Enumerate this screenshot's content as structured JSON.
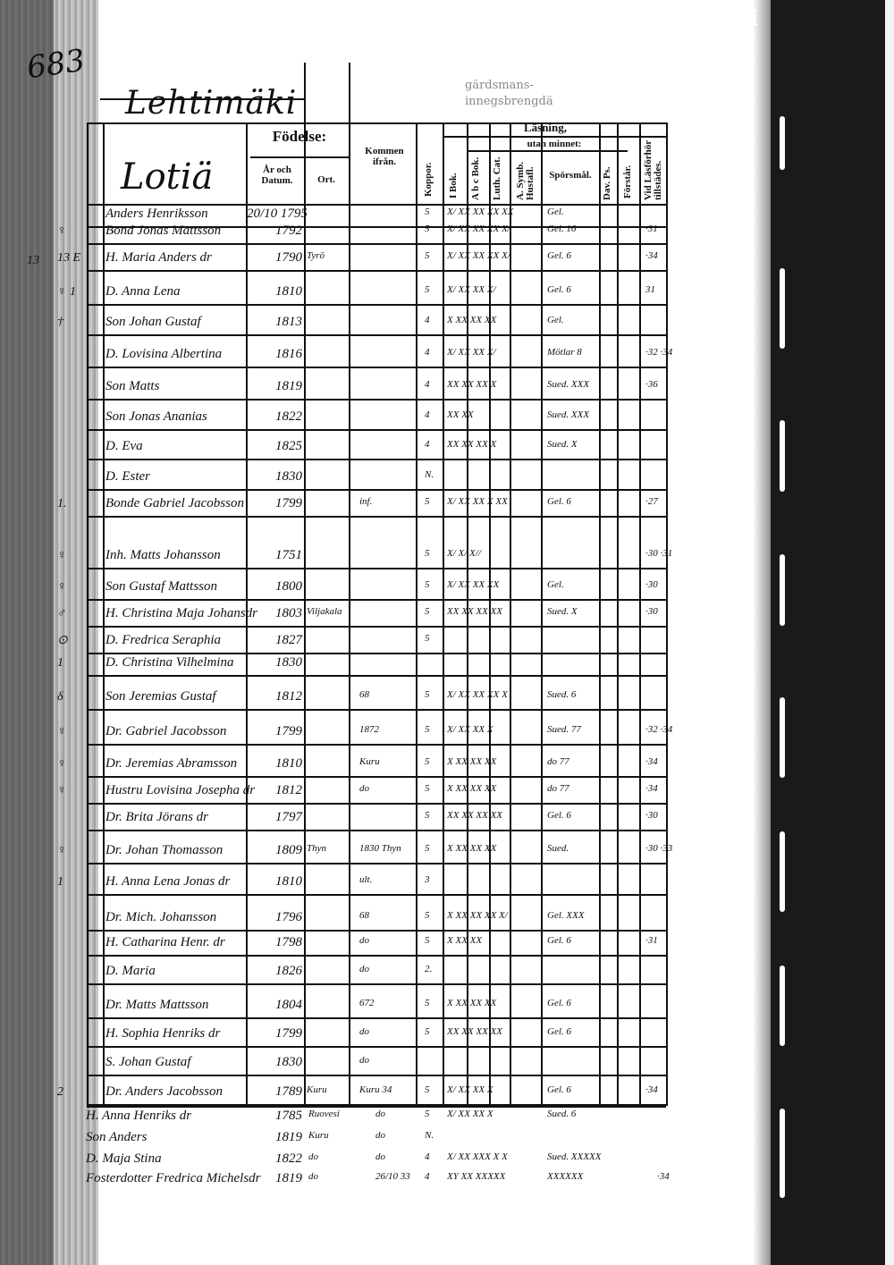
{
  "page": {
    "page_number": "683",
    "village": "Lehtimäki",
    "farm": "Lotiä",
    "faded_print": [
      "gärdsmans-",
      "innegsbrengdä"
    ],
    "margin_number": "13",
    "top_right_mark": "II",
    "bottom_right_mark": "II"
  },
  "headers": {
    "birth": "Födelse:",
    "year_date": "År och Datum.",
    "place": "Ort.",
    "moved_from": "Kommen ifrån.",
    "smallpox": "Koppor.",
    "reading": "Läsning,",
    "without_memory": "utan minnet:",
    "book": "I Bok.",
    "abc": "A b c Bok.",
    "catechism": "Luth. Cat.",
    "symbols": "A. Symb. Hustafl.",
    "questions": "Spörsmål.",
    "psalms": "Dav. Ps.",
    "understands": "Förstår.",
    "attended": "Vid Läsförhör tillstädes."
  },
  "rows": [
    {
      "mark": "",
      "name": "Anders Henriksson",
      "date": "20/10 1795",
      "place": "",
      "from": "",
      "koppor": "5",
      "reading": "X/ XX XX XX XX",
      "questions": "Gel.",
      "attended": ""
    },
    {
      "mark": "♀",
      "name": "Bond Jonas Mattsson",
      "date": "1792",
      "place": "",
      "from": "",
      "koppor": "5",
      "reading": "X/ XX XX XX X/",
      "questions": "Gel. 16",
      "attended": "·31"
    },
    {
      "mark": "13 E",
      "name": "H. Maria Anders dr",
      "date": "1790",
      "place": "Tyrö",
      "from": "",
      "koppor": "5",
      "reading": "X/ XX XX XX X/",
      "questions": "Gel. 6",
      "attended": "·34"
    },
    {
      "mark": "♀ 1",
      "name": "D. Anna Lena",
      "date": "1810",
      "place": "",
      "from": "",
      "koppor": "5",
      "reading": "X/ XX XX X/",
      "questions": "Gel. 6",
      "attended": "31"
    },
    {
      "mark": "†",
      "name": "Son Johan Gustaf",
      "date": "1813",
      "place": "",
      "from": "",
      "koppor": "4",
      "reading": "X XX XX XX",
      "questions": "Gel.",
      "attended": ""
    },
    {
      "mark": "",
      "name": "D. Lovisina Albertina",
      "date": "1816",
      "place": "",
      "from": "",
      "koppor": "4",
      "reading": "X/ XX XX X/",
      "questions": "Mötlar 8",
      "attended": "·32 ·34"
    },
    {
      "mark": "",
      "name": "Son Matts",
      "date": "1819",
      "place": "",
      "from": "",
      "koppor": "4",
      "reading": "XX XX XX X",
      "questions": "Sued. XXX",
      "attended": "·36"
    },
    {
      "mark": "",
      "name": "Son Jonas Ananias",
      "date": "1822",
      "place": "",
      "from": "",
      "koppor": "4",
      "reading": "XX XX",
      "questions": "Sued. XXX",
      "attended": ""
    },
    {
      "mark": "",
      "name": "D. Eva",
      "date": "1825",
      "place": "",
      "from": "",
      "koppor": "4",
      "reading": "XX XX XX X",
      "questions": "Sued. X",
      "attended": ""
    },
    {
      "mark": "",
      "name": "D. Ester",
      "date": "1830",
      "place": "",
      "from": "",
      "koppor": "N.",
      "reading": "",
      "questions": "",
      "attended": ""
    },
    {
      "mark": "1.",
      "name": "Bonde Gabriel Jacobsson",
      "date": "1799",
      "place": "",
      "from": "inf.",
      "koppor": "5",
      "reading": "X/ XX XX X XX",
      "questions": "Gel. 6",
      "attended": "·27"
    },
    {
      "mark": "♀",
      "name": "Inh. Matts Johansson",
      "date": "1751",
      "place": "",
      "from": "",
      "koppor": "5",
      "reading": "X/ X/ X//",
      "questions": "",
      "attended": "·30 ·31"
    },
    {
      "mark": "♀",
      "name": "Son Gustaf Mattsson",
      "date": "1800",
      "place": "",
      "from": "",
      "koppor": "5",
      "reading": "X/ XX XX XX",
      "questions": "Gel.",
      "attended": "·30"
    },
    {
      "mark": "♂",
      "name": "H. Christina Maja Johansdr",
      "date": "1803",
      "place": "Viljakala",
      "from": "",
      "koppor": "5",
      "reading": "XX XX XX XX",
      "questions": "Sued. X",
      "attended": "·30"
    },
    {
      "mark": "⊙",
      "name": "D. Fredrica Seraphia",
      "date": "1827",
      "place": "",
      "from": "",
      "koppor": "5",
      "reading": "",
      "questions": "",
      "attended": ""
    },
    {
      "mark": "1",
      "name": "D. Christina Vilhelmina",
      "date": "1830",
      "place": "",
      "from": "",
      "koppor": "",
      "reading": "",
      "questions": "",
      "attended": ""
    },
    {
      "mark": "δ",
      "name": "Son Jeremias Gustaf",
      "date": "1812",
      "place": "",
      "from": "68",
      "koppor": "5",
      "reading": "X/ XX XX XX X",
      "questions": "Sued. 6",
      "attended": ""
    },
    {
      "mark": "♀",
      "name": "Dr. Gabriel Jacobsson",
      "date": "1799",
      "place": "",
      "from": "1872",
      "koppor": "5",
      "reading": "X/ XX XX X",
      "questions": "Sued. 77",
      "attended": "·32 ·34"
    },
    {
      "mark": "♀",
      "name": "Dr. Jeremias Abramsson",
      "date": "1810",
      "place": "",
      "from": "Kuru",
      "koppor": "5",
      "reading": "X XX XX XX",
      "questions": "do 77",
      "attended": "·34"
    },
    {
      "mark": "♀",
      "name": "Hustru Lovisina Josepha dr",
      "date": "1812",
      "place": "",
      "from": "do",
      "koppor": "5",
      "reading": "X XX XX XX",
      "questions": "do 77",
      "attended": "·34"
    },
    {
      "mark": "",
      "name": "Dr. Brita Jörans dr",
      "date": "1797",
      "place": "",
      "from": "",
      "koppor": "5",
      "reading": "XX XX XX XX",
      "questions": "Gel. 6",
      "attended": "·30"
    },
    {
      "mark": "♀",
      "name": "Dr. Johan Thomasson",
      "date": "1809",
      "place": "Thyn",
      "from": "1830 Thyn",
      "koppor": "5",
      "reading": "X XX XX XX",
      "questions": "Sued.",
      "attended": "·30 ·33"
    },
    {
      "mark": "1",
      "name": "H. Anna Lena Jonas dr",
      "date": "1810",
      "place": "",
      "from": "ult.",
      "koppor": "3",
      "reading": "",
      "questions": "",
      "attended": ""
    },
    {
      "mark": "",
      "name": "Dr. Mich. Johansson",
      "date": "1796",
      "place": "",
      "from": "68",
      "koppor": "5",
      "reading": "X XX XX XX X/",
      "questions": "Gel. XXX",
      "attended": ""
    },
    {
      "mark": "",
      "name": "H. Catharina Henr. dr",
      "date": "1798",
      "place": "",
      "from": "do",
      "koppor": "5",
      "reading": "X XX XX",
      "questions": "Gel. 6",
      "attended": "·31"
    },
    {
      "mark": "",
      "name": "D. Maria",
      "date": "1826",
      "place": "",
      "from": "do",
      "koppor": "2.",
      "reading": "",
      "questions": "",
      "attended": ""
    },
    {
      "mark": "",
      "name": "Dr. Matts Mattsson",
      "date": "1804",
      "place": "",
      "from": "672",
      "koppor": "5",
      "reading": "X XX XX XX",
      "questions": "Gel. 6",
      "attended": ""
    },
    {
      "mark": "",
      "name": "H. Sophia Henriks dr",
      "date": "1799",
      "place": "",
      "from": "do",
      "koppor": "5",
      "reading": "XX XX XX XX",
      "questions": "Gel. 6",
      "attended": ""
    },
    {
      "mark": "",
      "name": "S. Johan Gustaf",
      "date": "1830",
      "place": "",
      "from": "do",
      "koppor": "",
      "reading": "",
      "questions": "",
      "attended": ""
    },
    {
      "mark": "2",
      "name": "Dr. Anders Jacobsson",
      "date": "1789",
      "place": "Kuru",
      "from": "Kuru 34",
      "koppor": "5",
      "reading": "X/ XX XX X",
      "questions": "Gel. 6",
      "attended": "·34"
    }
  ],
  "extra_rows": [
    {
      "name": "H. Anna Henriks dr",
      "date": "1785",
      "place": "Ruovesi",
      "from": "do",
      "koppor": "5",
      "reading": "X/ XX XX X",
      "questions": "Sued. 6"
    },
    {
      "name": "Son Anders",
      "date": "1819",
      "place": "Kuru",
      "from": "do",
      "koppor": "N.",
      "reading": "",
      "questions": ""
    },
    {
      "name": "D. Maja Stina",
      "date": "1822",
      "place": "do",
      "from": "do",
      "koppor": "4",
      "reading": "X/ XX XXX X X",
      "questions": "Sued. XXXXX"
    },
    {
      "name": "Fosterdotter Fredrica Michelsdr",
      "date": "1819",
      "place": "do",
      "from": "26/10 33",
      "koppor": "4",
      "reading": "XY XX XXXXX",
      "questions": "XXXXXX",
      "attended": "·34"
    }
  ]
}
